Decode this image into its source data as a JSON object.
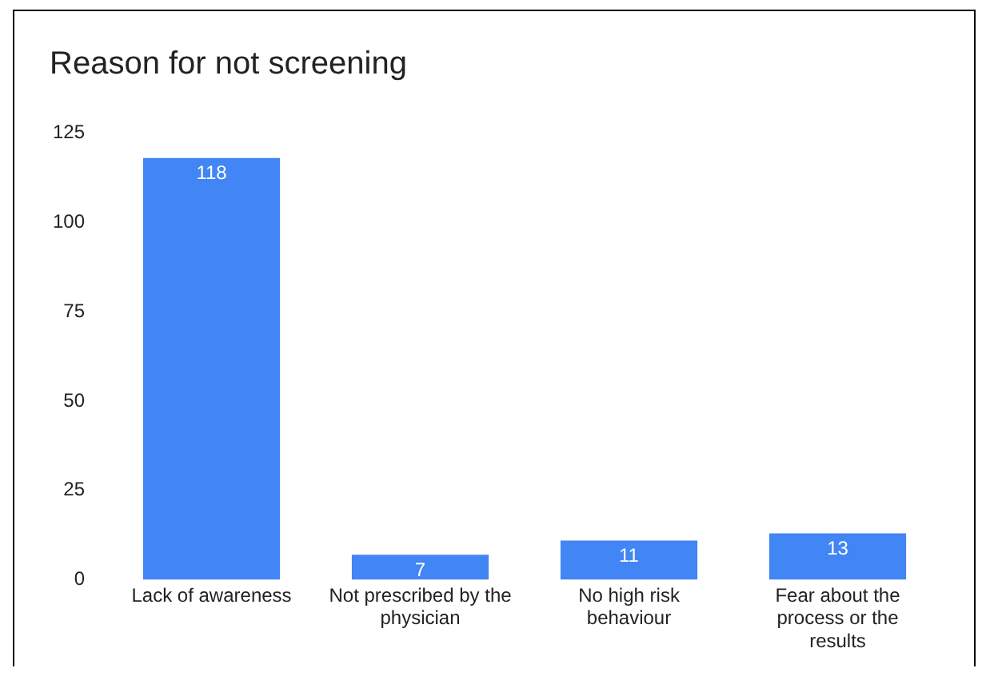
{
  "chart_data": {
    "type": "bar",
    "title": "Reason for not screening",
    "categories": [
      "Lack of awareness",
      "Not prescribed by the physician",
      "No high risk behaviour",
      "Fear about the process or the results"
    ],
    "values": [
      118,
      7,
      11,
      13
    ],
    "color": "#4285f4",
    "ylim": [
      0,
      125
    ],
    "yticks": [
      0,
      25,
      50,
      75,
      100,
      125
    ],
    "grid": false,
    "data_labels": true
  }
}
